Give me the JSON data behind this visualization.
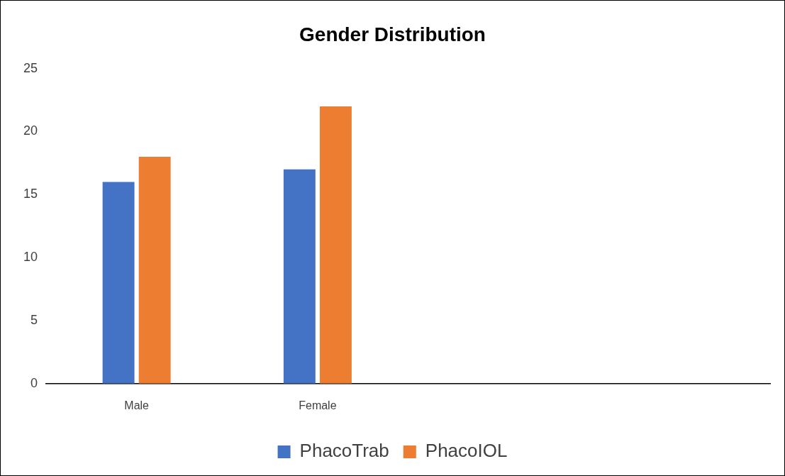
{
  "chart_data": {
    "type": "bar",
    "title": "Gender Distribution",
    "categories": [
      "Male",
      "Female",
      null,
      null
    ],
    "series": [
      {
        "name": "PhacoTrab",
        "color": "#4472c4",
        "values": [
          16,
          17,
          null,
          null
        ]
      },
      {
        "name": "PhacoIOL",
        "color": "#ed7d31",
        "values": [
          18,
          22,
          null,
          null
        ]
      }
    ],
    "ylim": [
      0,
      25
    ],
    "yticks": [
      0,
      5,
      10,
      15,
      20,
      25
    ],
    "grid": false,
    "legend": "bottom"
  }
}
